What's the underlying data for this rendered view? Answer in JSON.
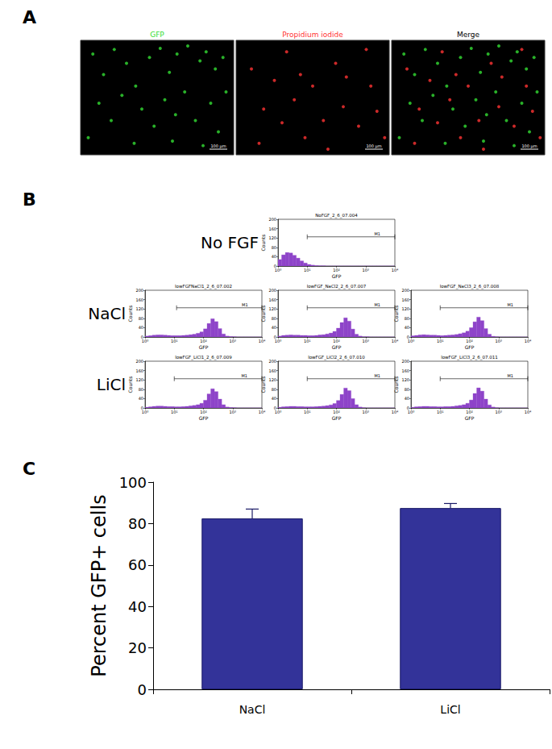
{
  "chart_data": [
    {
      "label": "A",
      "type": "scatter",
      "images": [
        {
          "title": "GFP",
          "color": "#33dd33",
          "scale_bar": "100 μm",
          "xlim": [
            0,
            100
          ],
          "ylim": [
            0,
            100
          ],
          "tick_labels": false,
          "series": [
            {
              "color": "#33dd33",
              "x": [
                8,
                15,
                22,
                30,
                36,
                45,
                52,
                58,
                63,
                70,
                78,
                82,
                88,
                93,
                12,
                20,
                27,
                40,
                48,
                55,
                62,
                68,
                75,
                85,
                90,
                5,
                35,
                60,
                80,
                95
              ],
              "values": [
                88,
                70,
                92,
                80,
                60,
                85,
                93,
                72,
                88,
                95,
                82,
                90,
                75,
                85,
                45,
                30,
                52,
                40,
                25,
                48,
                35,
                55,
                30,
                45,
                20,
                15,
                10,
                12,
                8,
                55
              ]
            }
          ]
        },
        {
          "title": "Propidium iodide",
          "color": "#ff3333",
          "scale_bar": "100 μm",
          "xlim": [
            0,
            100
          ],
          "ylim": [
            0,
            100
          ],
          "tick_labels": false,
          "series": [
            {
              "color": "#ff3333",
              "x": [
                10,
                25,
                33,
                42,
                50,
                65,
                72,
                85,
                18,
                30,
                45,
                57,
                70,
                80,
                92,
                15,
                38,
                60,
                88,
                97
              ],
              "values": [
                75,
                65,
                90,
                70,
                60,
                80,
                68,
                92,
                40,
                28,
                15,
                30,
                42,
                25,
                38,
                10,
                48,
                5,
                60,
                15
              ]
            }
          ]
        },
        {
          "title": "Merge",
          "color": "#000000",
          "scale_bar": "100 μm",
          "xlim": [
            0,
            100
          ],
          "ylim": [
            0,
            100
          ],
          "tick_labels": false,
          "series": [
            {
              "color": "#33dd33",
              "x": [
                8,
                15,
                22,
                30,
                36,
                45,
                52,
                58,
                63,
                70,
                78,
                82,
                88,
                93,
                12,
                20,
                27,
                40,
                48,
                55,
                62,
                68,
                75,
                85,
                90,
                5,
                35,
                60,
                80,
                95
              ],
              "values": [
                88,
                70,
                92,
                80,
                60,
                85,
                93,
                72,
                88,
                95,
                82,
                90,
                75,
                85,
                45,
                30,
                52,
                40,
                25,
                48,
                35,
                55,
                30,
                45,
                20,
                15,
                10,
                12,
                8,
                55
              ]
            },
            {
              "color": "#ff3333",
              "x": [
                10,
                25,
                33,
                42,
                50,
                65,
                72,
                85,
                18,
                30,
                45,
                57,
                70,
                80,
                92,
                15,
                38,
                60,
                88,
                97
              ],
              "values": [
                75,
                65,
                90,
                70,
                60,
                80,
                68,
                92,
                40,
                28,
                15,
                30,
                42,
                25,
                38,
                10,
                48,
                5,
                60,
                15
              ]
            }
          ]
        }
      ]
    },
    {
      "label": "B",
      "type": "histogram",
      "color": "#8e44c9",
      "log": "x",
      "xlabel": "GFP",
      "ylabel": "Counts",
      "xlim": [
        1,
        10000
      ],
      "xticks": [
        {
          "value": 1,
          "label": "10⁰"
        },
        {
          "value": 10,
          "label": "10¹"
        },
        {
          "value": 100,
          "label": "10²"
        },
        {
          "value": 1000,
          "label": "10³"
        },
        {
          "value": 10000,
          "label": "10⁴"
        }
      ],
      "ylim": [
        0,
        200
      ],
      "yticks": [
        0,
        40,
        80,
        120,
        160,
        200
      ],
      "bins": [
        1,
        1.33,
        1.78,
        2.37,
        3.16,
        4.22,
        5.62,
        7.5,
        10,
        13.3,
        17.8,
        23.7,
        31.6,
        42.2,
        56.2,
        75,
        100,
        133,
        178,
        237,
        316,
        422,
        562,
        750,
        1000,
        1330,
        1780,
        2370,
        3160,
        4220,
        5620,
        7500,
        10000
      ],
      "rows": [
        {
          "label": "No FGF",
          "plots": [
            {
              "title": "NoFGF_2_6_07.004",
              "gate": {
                "name": "M1",
                "range": [
                  10,
                  10000
                ],
                "level": 125
              },
              "counts": [
                28,
                48,
                58,
                56,
                46,
                34,
                22,
                13,
                7,
                4,
                2,
                1,
                1,
                0,
                0,
                0,
                0,
                0,
                0,
                0,
                0,
                0,
                0,
                0,
                0,
                0,
                0,
                0,
                0,
                0,
                0,
                0
              ]
            }
          ]
        },
        {
          "label": "NaCl",
          "plots": [
            {
              "title": "lowFGFNaCl1_2_6_07.002",
              "gate": {
                "name": "M1",
                "range": [
                  12,
                  10000
                ],
                "level": 125
              },
              "counts": [
                4,
                6,
                8,
                9,
                9,
                8,
                7,
                6,
                6,
                6,
                7,
                8,
                10,
                12,
                16,
                22,
                35,
                58,
                78,
                66,
                36,
                13,
                4,
                2,
                1,
                0,
                0,
                0,
                0,
                0,
                0,
                0
              ]
            },
            {
              "title": "lowFGF_NaCl2_2_6_07.007",
              "gate": {
                "name": "M1",
                "range": [
                  10,
                  10000
                ],
                "level": 125
              },
              "counts": [
                4,
                7,
                8,
                9,
                8,
                8,
                7,
                7,
                6,
                6,
                7,
                9,
                10,
                13,
                17,
                24,
                38,
                62,
                82,
                68,
                34,
                12,
                4,
                1,
                1,
                0,
                0,
                0,
                0,
                0,
                0,
                0
              ]
            },
            {
              "title": "lowFGF_NaCl3_2_6_07.008",
              "gate": {
                "name": "M1",
                "range": [
                  10,
                  10000
                ],
                "level": 125
              },
              "counts": [
                5,
                7,
                9,
                10,
                9,
                8,
                8,
                7,
                6,
                7,
                8,
                9,
                11,
                14,
                18,
                25,
                40,
                65,
                85,
                70,
                36,
                12,
                3,
                1,
                0,
                0,
                0,
                0,
                0,
                0,
                0,
                0
              ]
            }
          ]
        },
        {
          "label": "LiCl",
          "plots": [
            {
              "title": "lowFGF_LiCl1_2_6_07.009",
              "gate": {
                "name": "M1",
                "range": [
                  10,
                  10000
                ],
                "level": 125
              },
              "counts": [
                3,
                5,
                7,
                8,
                8,
                7,
                6,
                6,
                5,
                5,
                6,
                7,
                9,
                11,
                14,
                20,
                33,
                60,
                82,
                70,
                38,
                14,
                4,
                2,
                1,
                0,
                0,
                0,
                0,
                0,
                0,
                0
              ]
            },
            {
              "title": "lowFGF_LiCl2_2_6_07.010",
              "gate": {
                "name": "M1",
                "range": [
                  10,
                  10000
                ],
                "level": 125
              },
              "counts": [
                3,
                5,
                6,
                7,
                7,
                6,
                6,
                5,
                5,
                5,
                6,
                7,
                8,
                10,
                13,
                19,
                32,
                58,
                85,
                74,
                40,
                14,
                4,
                1,
                0,
                0,
                0,
                0,
                0,
                0,
                0,
                0
              ]
            },
            {
              "title": "lowFGF_LiCl3_2_6_07.011",
              "gate": {
                "name": "M1",
                "range": [
                  10,
                  10000
                ],
                "level": 125
              },
              "counts": [
                3,
                5,
                6,
                7,
                7,
                6,
                6,
                5,
                5,
                6,
                6,
                7,
                9,
                11,
                14,
                20,
                34,
                62,
                86,
                72,
                38,
                13,
                4,
                1,
                0,
                0,
                0,
                0,
                0,
                0,
                0,
                0
              ]
            }
          ]
        }
      ]
    },
    {
      "label": "C",
      "type": "bar",
      "color": "#333399",
      "grid": false,
      "ylabel": "Percent GFP+ cells",
      "categories": [
        "NaCl",
        "LiCl"
      ],
      "values": [
        82.5,
        87.5
      ],
      "errors": [
        4.5,
        2.2
      ],
      "ylim": [
        0,
        100
      ],
      "yticks": [
        0,
        20,
        40,
        60,
        80,
        100
      ]
    }
  ]
}
